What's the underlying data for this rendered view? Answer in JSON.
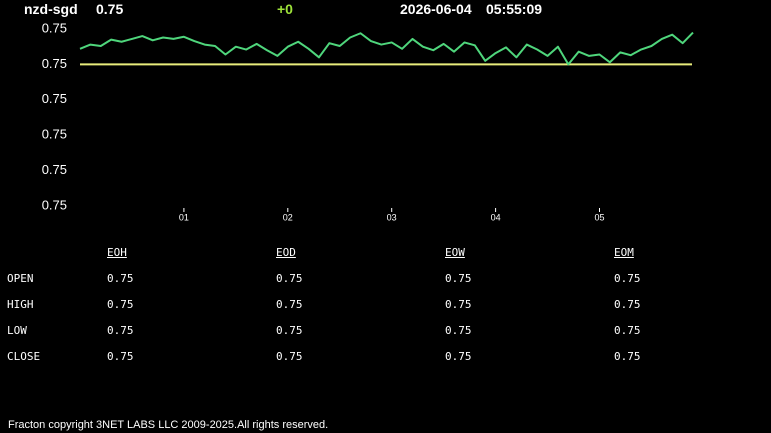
{
  "header": {
    "symbol": "nzd-sgd",
    "price": "0.75",
    "change": "+0",
    "date": "2026-06-04",
    "time": "05:55:09"
  },
  "chart_data": {
    "type": "line",
    "color": "#4fd67c",
    "x": [
      0.0,
      0.1,
      0.2,
      0.3,
      0.4,
      0.5,
      0.6,
      0.7,
      0.8,
      0.9,
      1.0,
      1.1,
      1.2,
      1.3,
      1.4,
      1.5,
      1.6,
      1.7,
      1.8,
      1.9,
      2.0,
      2.1,
      2.2,
      2.3,
      2.4,
      2.5,
      2.6,
      2.7,
      2.8,
      2.9,
      3.0,
      3.1,
      3.2,
      3.3,
      3.4,
      3.5,
      3.6,
      3.7,
      3.8,
      3.9,
      4.0,
      4.1,
      4.2,
      4.3,
      4.4,
      4.5,
      4.6,
      4.7,
      4.8,
      4.9,
      5.0,
      5.1,
      5.2,
      5.3,
      5.4,
      5.5,
      5.6,
      5.7,
      5.8,
      5.9
    ],
    "values": [
      0.75222,
      0.75228,
      0.75226,
      0.75235,
      0.75232,
      0.75236,
      0.7524,
      0.75234,
      0.75238,
      0.75236,
      0.75239,
      0.75233,
      0.75228,
      0.75226,
      0.75214,
      0.75225,
      0.75221,
      0.75229,
      0.7522,
      0.75212,
      0.75225,
      0.75232,
      0.75222,
      0.7521,
      0.7523,
      0.75226,
      0.75238,
      0.75244,
      0.75233,
      0.75228,
      0.75231,
      0.75222,
      0.75236,
      0.75225,
      0.7522,
      0.75229,
      0.75218,
      0.75231,
      0.75227,
      0.75205,
      0.75216,
      0.75224,
      0.7521,
      0.75228,
      0.75221,
      0.75212,
      0.75225,
      0.752,
      0.75218,
      0.75212,
      0.75214,
      0.75203,
      0.75217,
      0.75213,
      0.75221,
      0.75226,
      0.75236,
      0.75242,
      0.7523,
      0.75245
    ],
    "reference_line": {
      "value": 0.752,
      "color": "#e8ec7c"
    },
    "xlim": [
      0,
      5.9
    ],
    "xticks": [
      {
        "value": 1,
        "label": "01"
      },
      {
        "value": 2,
        "label": "02"
      },
      {
        "value": 3,
        "label": "03"
      },
      {
        "value": 4,
        "label": "04"
      },
      {
        "value": 5,
        "label": "05"
      }
    ],
    "ylim": [
      0.75,
      0.7525
    ],
    "yticks": [
      {
        "value": 0.7525,
        "label": "0.75"
      },
      {
        "value": 0.752,
        "label": "0.75"
      },
      {
        "value": 0.7515,
        "label": "0.75"
      },
      {
        "value": 0.751,
        "label": "0.75"
      },
      {
        "value": 0.7505,
        "label": "0.75"
      },
      {
        "value": 0.75,
        "label": "0.75"
      }
    ]
  },
  "table": {
    "columns": [
      "EOH",
      "EOD",
      "EOW",
      "EOM"
    ],
    "rows": [
      {
        "label": "OPEN",
        "cells": [
          "0.75",
          "0.75",
          "0.75",
          "0.75"
        ]
      },
      {
        "label": "HIGH",
        "cells": [
          "0.75",
          "0.75",
          "0.75",
          "0.75"
        ]
      },
      {
        "label": "LOW",
        "cells": [
          "0.75",
          "0.75",
          "0.75",
          "0.75"
        ]
      },
      {
        "label": "CLOSE",
        "cells": [
          "0.75",
          "0.75",
          "0.75",
          "0.75"
        ]
      }
    ]
  },
  "footer": "Fracton copyright 3NET LABS LLC 2009-2025.All rights reserved."
}
